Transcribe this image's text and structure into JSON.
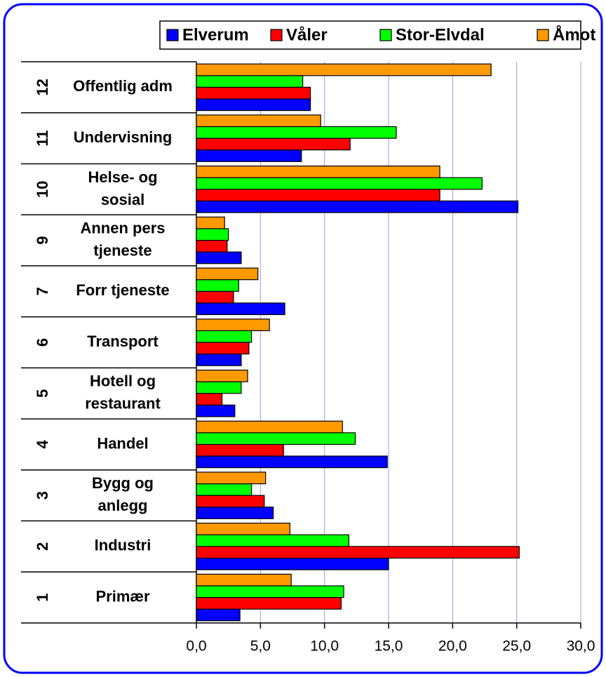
{
  "chart_data": {
    "type": "bar",
    "orientation": "horizontal",
    "category_numbers": [
      "1",
      "2",
      "3",
      "4",
      "5",
      "6",
      "7",
      "9",
      "10",
      "11",
      "12"
    ],
    "categories": [
      "Primær",
      "Industri",
      "Bygg og anlegg",
      "Handel",
      "Hotell og restaurant",
      "Transport",
      "Forr tjeneste",
      "Annen pers tjeneste",
      "Helse- og sosial",
      "Undervisning",
      "Offentlig adm"
    ],
    "series": [
      {
        "name": "Elverum",
        "color": "#0000ff",
        "values": [
          3.4,
          15.0,
          6.0,
          14.9,
          3.0,
          3.5,
          6.9,
          3.5,
          25.1,
          8.2,
          8.9
        ]
      },
      {
        "name": "Våler",
        "color": "#ff0000",
        "values": [
          11.3,
          25.2,
          5.3,
          6.8,
          2.0,
          4.1,
          2.9,
          2.4,
          19.0,
          12.0,
          8.9
        ]
      },
      {
        "name": "Stor-Elvdal",
        "color": "#00ff00",
        "values": [
          11.5,
          11.9,
          4.3,
          12.4,
          3.5,
          4.3,
          3.3,
          2.5,
          22.3,
          15.6,
          8.3
        ]
      },
      {
        "name": "Åmot",
        "color": "#ff9900",
        "values": [
          7.4,
          7.3,
          5.4,
          11.4,
          4.0,
          5.7,
          4.8,
          2.2,
          19.0,
          9.7,
          23.0
        ]
      }
    ],
    "xlim": [
      0,
      30
    ],
    "xticks": [
      {
        "value": 0,
        "label": "0,0"
      },
      {
        "value": 5,
        "label": "5,0"
      },
      {
        "value": 10,
        "label": "10,0"
      },
      {
        "value": 15,
        "label": "15,0"
      },
      {
        "value": 20,
        "label": "20,0"
      },
      {
        "value": 25,
        "label": "25,0"
      },
      {
        "value": 30,
        "label": "30,0"
      }
    ],
    "grid": true,
    "legend": "top"
  }
}
